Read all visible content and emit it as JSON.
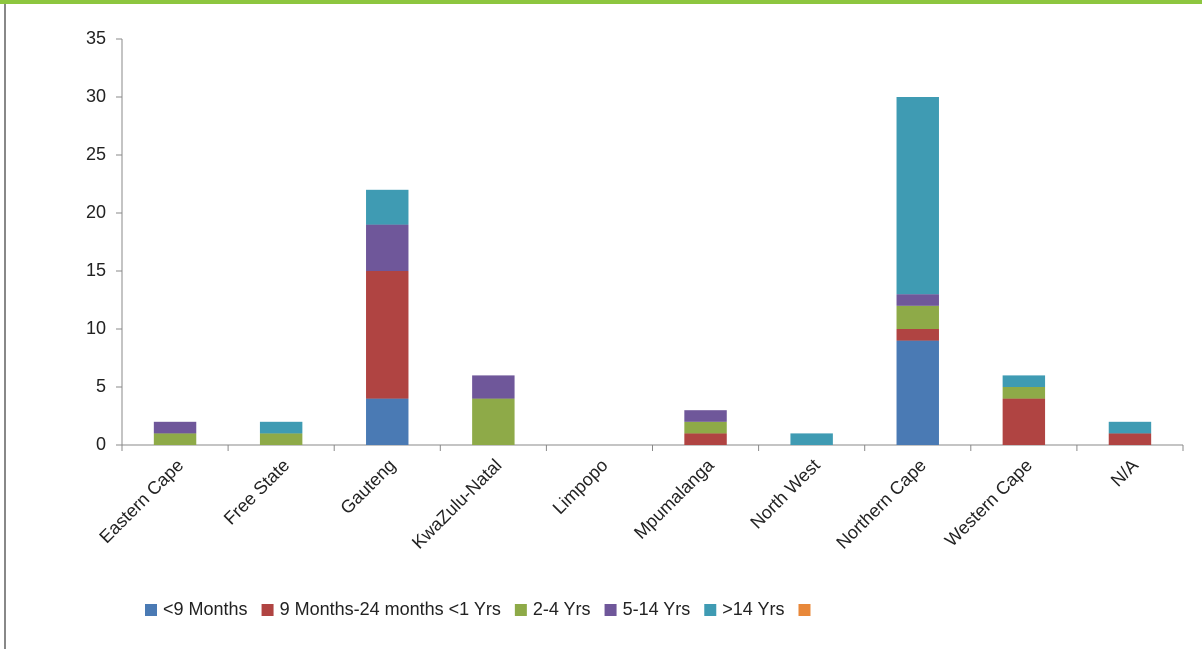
{
  "chart_data": {
    "type": "bar",
    "stacked": true,
    "categories": [
      "Eastern Cape",
      "Free State",
      "Gauteng",
      "KwaZulu-Natal",
      "Limpopo",
      "Mpumalanga",
      "North West",
      "Northern Cape",
      "Western Cape",
      "N/A"
    ],
    "series": [
      {
        "name": "<9 Months",
        "color": "#4a7ab4",
        "values": [
          0,
          0,
          4,
          0,
          0,
          0,
          0,
          9,
          0,
          0
        ]
      },
      {
        "name": "9 Months-24 months <1 Yrs",
        "color": "#b04442",
        "values": [
          0,
          0,
          11,
          0,
          0,
          1,
          0,
          1,
          4,
          1
        ]
      },
      {
        "name": "2-4 Yrs",
        "color": "#8eaa48",
        "values": [
          1,
          1,
          0,
          4,
          0,
          1,
          0,
          2,
          1,
          0
        ]
      },
      {
        "name": "5-14 Yrs",
        "color": "#6f579a",
        "values": [
          1,
          0,
          4,
          2,
          0,
          1,
          0,
          1,
          0,
          0
        ]
      },
      {
        "name": ">14 Yrs",
        "color": "#3f9bb3",
        "values": [
          0,
          1,
          3,
          0,
          0,
          0,
          1,
          17,
          1,
          1
        ]
      },
      {
        "name": null,
        "color": "#e8883a",
        "values": [
          0,
          0,
          0,
          0,
          0,
          0,
          0,
          0,
          0,
          0
        ]
      }
    ],
    "ylim": [
      0,
      35
    ],
    "yticks": [
      0,
      5,
      10,
      15,
      20,
      25,
      30,
      35
    ],
    "grid": false,
    "legend": "bottom"
  }
}
